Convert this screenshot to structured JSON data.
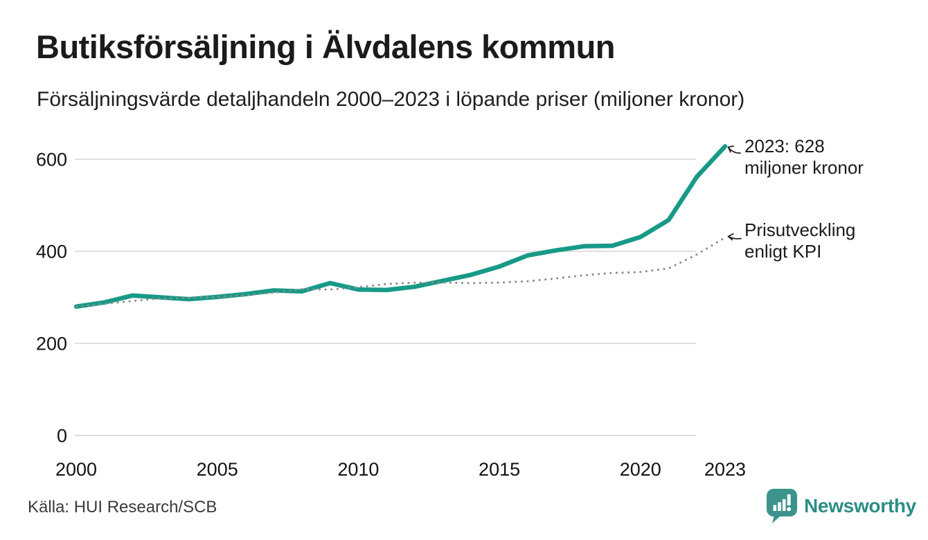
{
  "header": {
    "title": "Butiksförsäljning i Älvdalens kommun",
    "subtitle": "Försäljningsvärde detaljhandeln 2000–2023 i löpande priser (miljoner kronor)"
  },
  "chart_data": {
    "type": "line",
    "title": "Butiksförsäljning i Älvdalens kommun",
    "subtitle": "Försäljningsvärde detaljhandeln 2000–2023 i löpande priser (miljoner kronor)",
    "x": [
      2000,
      2001,
      2002,
      2003,
      2004,
      2005,
      2006,
      2007,
      2008,
      2009,
      2010,
      2011,
      2012,
      2013,
      2014,
      2015,
      2016,
      2017,
      2018,
      2019,
      2020,
      2021,
      2022,
      2023
    ],
    "series": [
      {
        "key": "sales",
        "name": "Försäljningsvärde i löpande priser",
        "color": "#189a88",
        "style": "solid",
        "values": [
          280,
          289,
          304,
          300,
          296,
          301,
          307,
          315,
          313,
          331,
          317,
          316,
          323,
          336,
          349,
          367,
          391,
          402,
          411,
          412,
          431,
          468,
          562,
          628
        ]
      },
      {
        "key": "kpi",
        "name": "Prisutveckling enligt KPI",
        "color": "#8d8d8d",
        "style": "dotted",
        "values": [
          280,
          286,
          292,
          298,
          299,
          301,
          305,
          310,
          318,
          317,
          322,
          329,
          332,
          332,
          331,
          332,
          335,
          341,
          348,
          353,
          355,
          363,
          393,
          430
        ]
      }
    ],
    "x_ticks": [
      "2000",
      "2005",
      "2010",
      "2015",
      "2020",
      "2023"
    ],
    "x_tick_years": [
      2000,
      2005,
      2010,
      2015,
      2020,
      2023
    ],
    "y_ticks": [
      0,
      200,
      400,
      600
    ],
    "ylim": [
      0,
      660
    ],
    "grid": "horizontal",
    "legend": "none",
    "annotations": [
      {
        "lines": [
          "2023: 628",
          "miljoner kronor"
        ],
        "target_year": 2023,
        "target_value": 628
      },
      {
        "lines": [
          "Prisutveckling",
          "enligt KPI"
        ],
        "target_year": 2023,
        "target_value": 430
      }
    ]
  },
  "footer": {
    "source": "Källa: HUI Research/SCB",
    "brand": "Newsworthy"
  },
  "colors": {
    "line_main": "#189a88",
    "line_kpi": "#8d8d8d",
    "gridline": "#e0e0e0",
    "brand_teal": "#2d8d86",
    "logo_bubble": "#3b938c",
    "text_dark": "#1b1b1b"
  }
}
